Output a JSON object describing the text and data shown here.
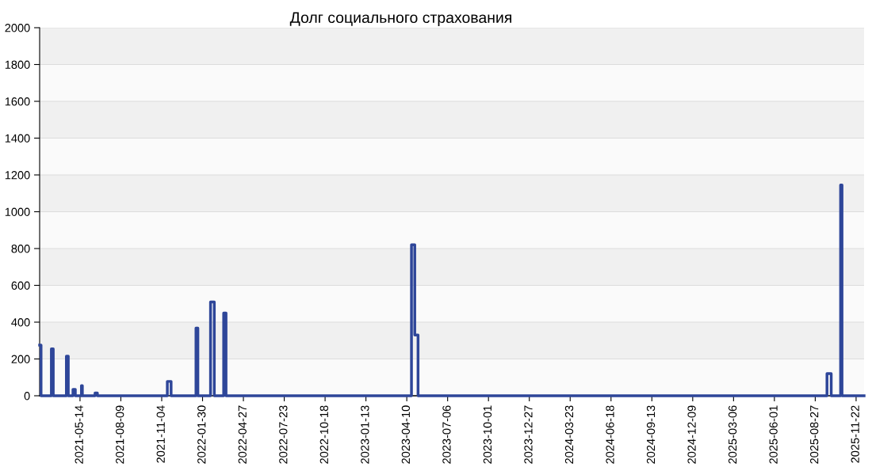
{
  "chart_data": {
    "type": "line",
    "title": "Долг социального страхования",
    "x": [
      "2021-02-17",
      "2021-02-20",
      "2021-02-20",
      "2021-03-14",
      "2021-03-14",
      "2021-03-18",
      "2021-03-18",
      "2021-04-15",
      "2021-04-15",
      "2021-04-19",
      "2021-04-19",
      "2021-04-29",
      "2021-04-29",
      "2021-05-04",
      "2021-05-04",
      "2021-05-17",
      "2021-05-17",
      "2021-05-19",
      "2021-05-19",
      "2021-06-15",
      "2021-06-15",
      "2021-06-20",
      "2021-06-20",
      "2021-11-16",
      "2021-11-16",
      "2021-11-24",
      "2021-11-24",
      "2022-01-16",
      "2022-01-16",
      "2022-01-20",
      "2022-01-20",
      "2022-02-16",
      "2022-02-16",
      "2022-02-24",
      "2022-02-24",
      "2022-03-16",
      "2022-03-16",
      "2022-03-21",
      "2022-03-21",
      "2023-04-20",
      "2023-04-20",
      "2023-04-27",
      "2023-04-27",
      "2023-05-04",
      "2023-05-04",
      "2025-09-21",
      "2025-09-21",
      "2025-09-30",
      "2025-09-30",
      "2025-10-20",
      "2025-10-20",
      "2025-10-23",
      "2025-10-23",
      "2025-12-09"
    ],
    "series": [
      {
        "color": "#2e4699",
        "values": [
          275,
          275,
          0,
          0,
          255,
          255,
          0,
          0,
          215,
          215,
          0,
          0,
          35,
          35,
          0,
          0,
          55,
          55,
          0,
          0,
          15,
          15,
          0,
          0,
          78,
          78,
          0,
          0,
          368,
          368,
          0,
          0,
          510,
          510,
          0,
          0,
          450,
          450,
          0,
          0,
          820,
          820,
          330,
          330,
          0,
          0,
          120,
          120,
          0,
          0,
          1145,
          1145,
          0,
          0
        ]
      }
    ],
    "xlim": [
      "2021-02-17",
      "2025-12-09"
    ],
    "xticks": [
      "2021-05-14",
      "2021-08-09",
      "2021-11-04",
      "2022-01-30",
      "2022-04-27",
      "2022-07-23",
      "2022-10-18",
      "2023-01-13",
      "2023-04-10",
      "2023-07-06",
      "2023-10-01",
      "2023-12-27",
      "2024-03-23",
      "2024-06-18",
      "2024-09-13",
      "2024-12-09",
      "2025-03-06",
      "2025-06-01",
      "2025-08-27",
      "2025-11-22"
    ],
    "ylim": [
      0,
      2000
    ],
    "yticks": [
      0,
      200,
      400,
      600,
      800,
      1000,
      1200,
      1400,
      1600,
      1800,
      2000
    ],
    "grid": "y",
    "marker": "none",
    "line_style": "solid"
  }
}
